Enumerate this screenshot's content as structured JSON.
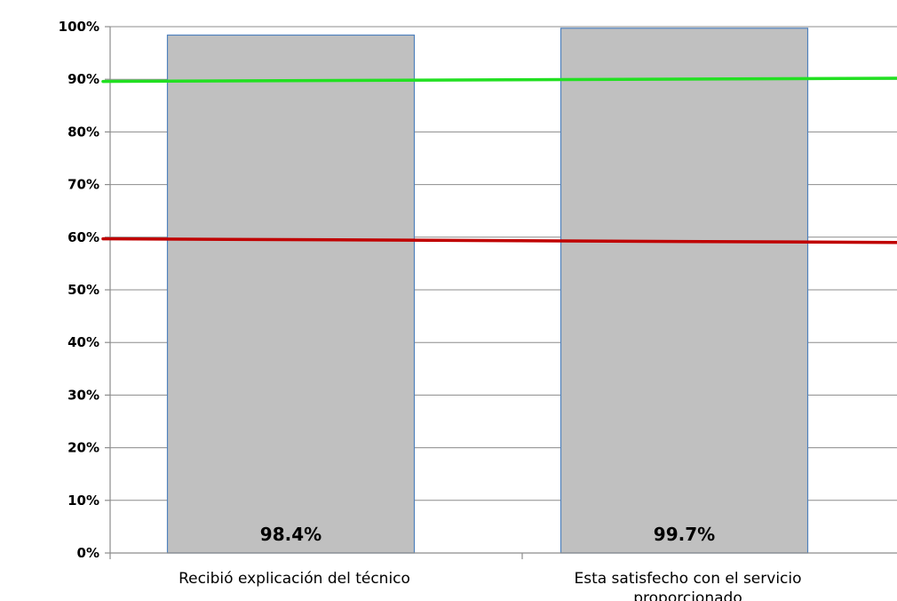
{
  "chart_data": {
    "type": "bar",
    "categories": [
      "Recibió explicación del técnico",
      [
        "Esta satisfecho con el servicio",
        "proporcionado"
      ]
    ],
    "values": [
      98.4,
      99.7
    ],
    "data_labels": [
      "98.4%",
      "99.7%"
    ],
    "ylim": [
      0,
      100
    ],
    "yticks": [
      0,
      10,
      20,
      30,
      40,
      50,
      60,
      70,
      80,
      90,
      100
    ],
    "ytick_labels": [
      "0%",
      "10%",
      "20%",
      "30%",
      "40%",
      "50%",
      "60%",
      "70%",
      "80%",
      "90%",
      "100%"
    ],
    "grid": true,
    "bar_color": "#c0c0c0",
    "bar_border_color": "#4f81bd",
    "reference_lines": [
      {
        "y_start": 89.6,
        "y_end": 90.2,
        "color": "#22e022"
      },
      {
        "y_start": 59.7,
        "y_end": 59.0,
        "color": "#c00000"
      }
    ]
  }
}
